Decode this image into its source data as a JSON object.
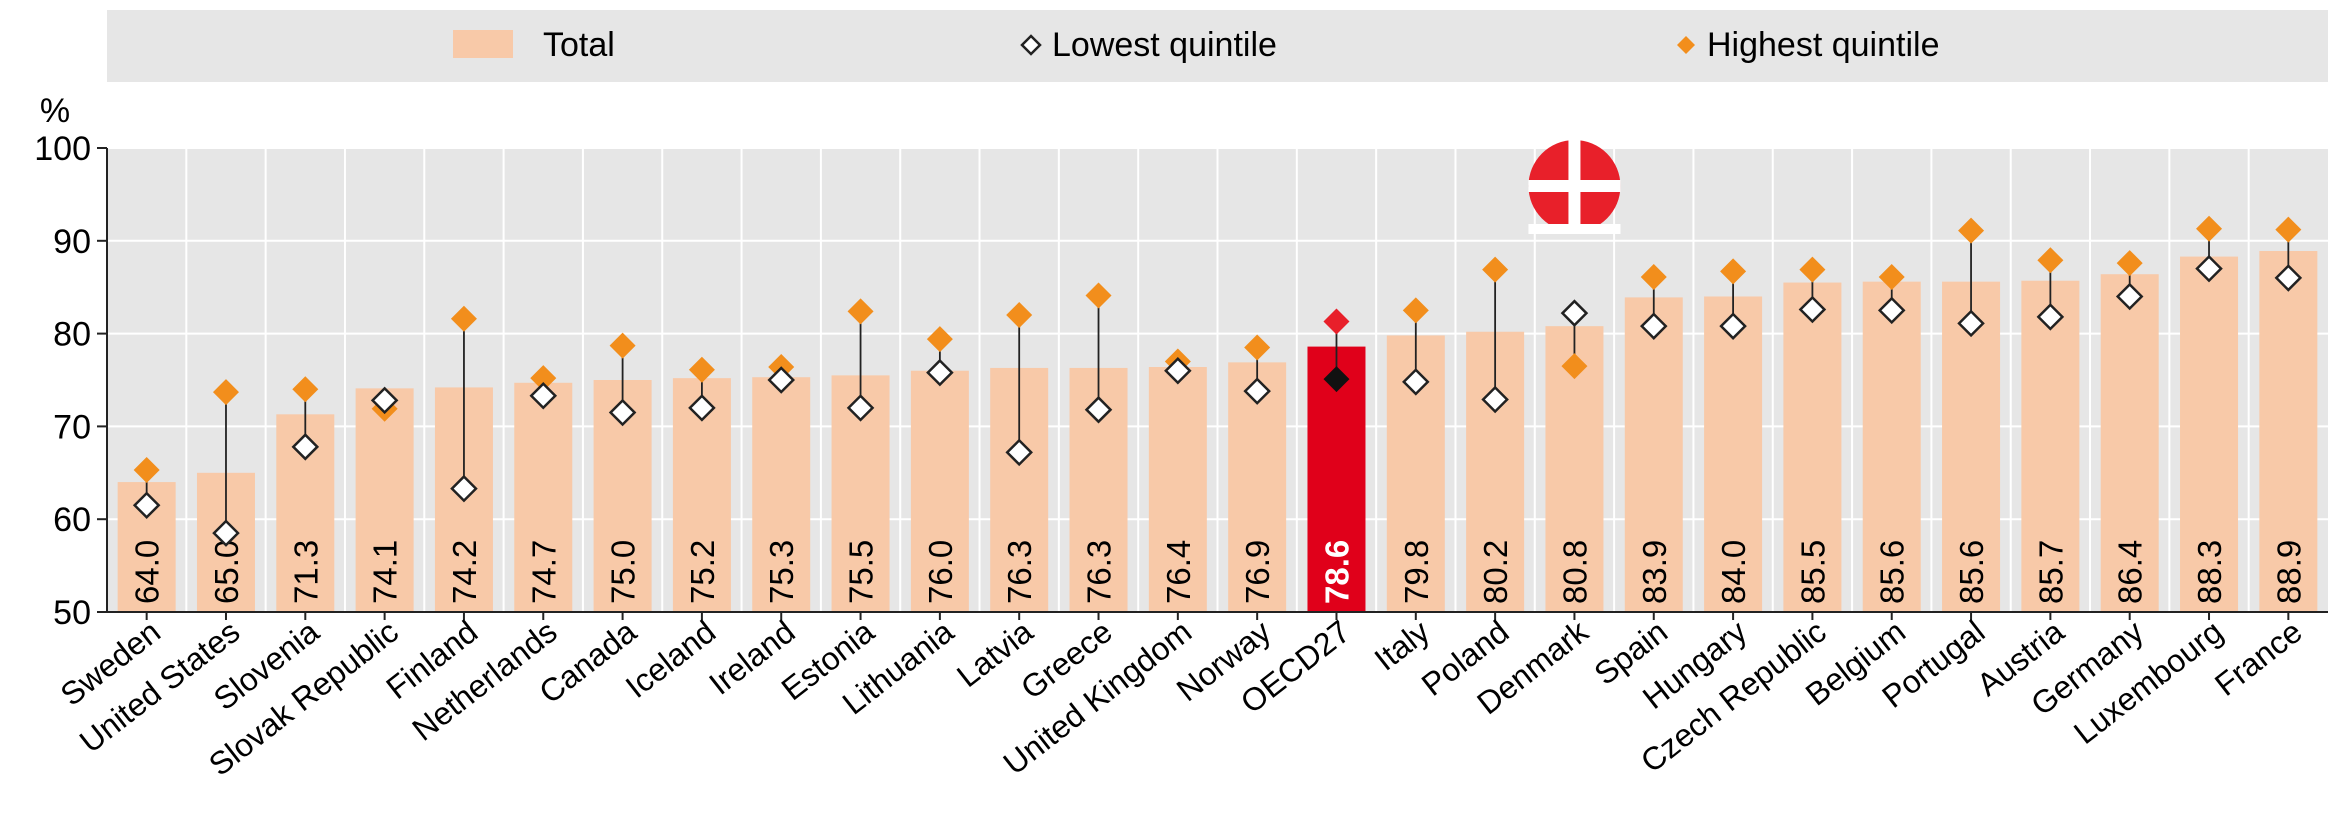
{
  "chart_data": {
    "type": "bar",
    "title": "",
    "xlabel": "",
    "ylabel": "%",
    "ylim": [
      50,
      100
    ],
    "yticks": [
      50,
      60,
      70,
      80,
      90,
      100
    ],
    "grid": true,
    "legend_position": "top",
    "highlight_category": "OECD27",
    "categories": [
      "Sweden",
      "United States",
      "Slovenia",
      "Slovak Republic",
      "Finland",
      "Netherlands",
      "Canada",
      "Iceland",
      "Ireland",
      "Estonia",
      "Lithuania",
      "Latvia",
      "Greece",
      "United Kingdom",
      "Norway",
      "OECD27",
      "Italy",
      "Poland",
      "Denmark",
      "Spain",
      "Hungary",
      "Czech Republic",
      "Belgium",
      "Portugal",
      "Austria",
      "Germany",
      "Luxembourg",
      "France"
    ],
    "value_labels": [
      "64.0",
      "65.0",
      "71.3",
      "74.1",
      "74.2",
      "74.7",
      "75.0",
      "75.2",
      "75.3",
      "75.5",
      "76.0",
      "76.3",
      "76.3",
      "76.4",
      "76.9",
      "78.6",
      "79.8",
      "80.2",
      "80.8",
      "83.9",
      "84.0",
      "85.5",
      "85.6",
      "85.6",
      "85.7",
      "86.4",
      "88.3",
      "88.9"
    ],
    "series": [
      {
        "name": "Total",
        "kind": "bar",
        "values": [
          64.0,
          65.0,
          71.3,
          74.1,
          74.2,
          74.7,
          75.0,
          75.2,
          75.3,
          75.5,
          76.0,
          76.3,
          76.3,
          76.4,
          76.9,
          78.6,
          79.8,
          80.2,
          80.8,
          83.9,
          84.0,
          85.5,
          85.6,
          85.6,
          85.7,
          86.4,
          88.3,
          88.9
        ]
      },
      {
        "name": "Lowest quintile",
        "kind": "marker",
        "values": [
          61.5,
          58.5,
          67.8,
          72.8,
          63.3,
          73.3,
          71.5,
          72.0,
          75.0,
          72.0,
          75.8,
          67.2,
          71.8,
          76.0,
          73.8,
          75.1,
          74.8,
          72.9,
          82.2,
          80.8,
          80.8,
          82.6,
          82.5,
          81.1,
          81.8,
          84.0,
          87.0,
          86.0
        ]
      },
      {
        "name": "Highest quintile",
        "kind": "marker",
        "values": [
          65.3,
          73.7,
          74.0,
          71.9,
          81.6,
          75.2,
          78.7,
          76.1,
          76.4,
          82.4,
          79.4,
          82.0,
          84.1,
          77.0,
          78.5,
          81.3,
          82.5,
          86.9,
          76.5,
          86.1,
          86.7,
          86.9,
          86.1,
          91.1,
          87.9,
          87.6,
          91.3,
          91.2
        ]
      }
    ],
    "colors": {
      "bar": "#f8c9a8",
      "highlight_bar": "#e0001a",
      "highest_marker": "#f28e1c",
      "lowest_marker_fill": "#ffffff",
      "lowest_marker_stroke": "#222222",
      "highlight_lowest_marker": "#111111",
      "highlight_highest_marker": "#e8202a",
      "plot_background": "#e6e6e6",
      "legend_background": "#e6e6e6",
      "gridline": "#ffffff",
      "connector": "#222222",
      "value_label": "#000000",
      "highlight_value_label": "#ffffff",
      "badge": "#e8202a"
    },
    "badge_category": "Denmark",
    "badge_icon": "red-circle-white-cross-icon"
  }
}
